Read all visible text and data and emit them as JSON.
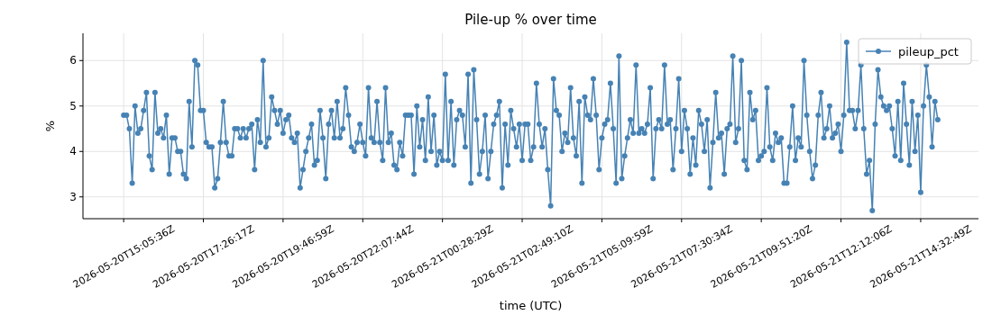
{
  "chart_data": {
    "type": "line",
    "title": "Pile-up % over time",
    "xlabel": "time (UTC)",
    "ylabel": "%",
    "categories": [
      "2026-05-20T15:05:36Z",
      null,
      null,
      null,
      null,
      null,
      null,
      null,
      null,
      null,
      null,
      null,
      null,
      null,
      null,
      null,
      null,
      null,
      null,
      null,
      null,
      null,
      null,
      null,
      null,
      null,
      null,
      null,
      "2026-05-20T17:26:17Z",
      null,
      null,
      null,
      null,
      null,
      null,
      null,
      null,
      null,
      null,
      null,
      null,
      null,
      null,
      null,
      null,
      null,
      null,
      null,
      null,
      null,
      null,
      null,
      null,
      null,
      null,
      null,
      "2026-05-20T19:46:59Z",
      null,
      null,
      null,
      null,
      null,
      null,
      null,
      null,
      null,
      null,
      null,
      null,
      null,
      null,
      null,
      null,
      null,
      null,
      null,
      null,
      null,
      null,
      null,
      null,
      null,
      null,
      null,
      "2026-05-20T22:07:44Z",
      null,
      null,
      null,
      null,
      null,
      null,
      null,
      null,
      null,
      null,
      null,
      null,
      null,
      null,
      null,
      null,
      null,
      null,
      null,
      null,
      null,
      null,
      null,
      null,
      null,
      null,
      null,
      "2026-05-21T00:28:29Z",
      null,
      null,
      null,
      null,
      null,
      null,
      null,
      null,
      null,
      null,
      null,
      null,
      null,
      null,
      null,
      null,
      null,
      null,
      null,
      null,
      null,
      null,
      null,
      null,
      null,
      null,
      null,
      "2026-05-21T02:49:10Z",
      null,
      null,
      null,
      null,
      null,
      null,
      null,
      null,
      null,
      null,
      null,
      null,
      null,
      null,
      null,
      null,
      null,
      null,
      null,
      null,
      null,
      null,
      null,
      null,
      null,
      null,
      null,
      "2026-05-21T05:09:59Z",
      null,
      null,
      null,
      null,
      null,
      null,
      null,
      null,
      null,
      null,
      null,
      null,
      null,
      null,
      null,
      null,
      null,
      null,
      null,
      null,
      null,
      null,
      null,
      null,
      null,
      null,
      null,
      "2026-05-21T07:30:34Z",
      null,
      null,
      null,
      null,
      null,
      null,
      null,
      null,
      null,
      null,
      null,
      null,
      null,
      null,
      null,
      null,
      null,
      null,
      null,
      null,
      null,
      null,
      null,
      null,
      null,
      null,
      null,
      "2026-05-21T09:51:20Z",
      null,
      null,
      null,
      null,
      null,
      null,
      null,
      null,
      null,
      null,
      null,
      null,
      null,
      null,
      null,
      null,
      null,
      null,
      null,
      null,
      null,
      null,
      null,
      null,
      null,
      null,
      null,
      "2026-05-21T12:12:06Z",
      null,
      null,
      null,
      null,
      null,
      null,
      null,
      null,
      null,
      null,
      null,
      null,
      null,
      null,
      null,
      null,
      null,
      null,
      null,
      null,
      null,
      null,
      null,
      null,
      null,
      null,
      null,
      "2026-05-21T14:32:49Z",
      null,
      null,
      null,
      null,
      null,
      null
    ],
    "series": [
      {
        "name": "pileup_pct",
        "color": "#4682b4",
        "values": [
          4.8,
          4.8,
          4.5,
          3.3,
          5.0,
          4.4,
          4.5,
          4.9,
          5.3,
          3.9,
          3.6,
          5.3,
          4.4,
          4.5,
          4.3,
          4.8,
          3.5,
          4.3,
          4.3,
          4.0,
          4.0,
          3.5,
          3.4,
          5.1,
          4.1,
          6.0,
          5.9,
          4.9,
          4.9,
          4.2,
          4.1,
          4.1,
          3.2,
          3.4,
          4.2,
          5.1,
          4.2,
          3.9,
          3.9,
          4.5,
          4.5,
          4.3,
          4.5,
          4.3,
          4.5,
          4.6,
          3.6,
          4.7,
          4.2,
          6.0,
          4.1,
          4.3,
          5.2,
          4.9,
          4.6,
          4.9,
          4.4,
          4.7,
          4.8,
          4.3,
          4.2,
          4.4,
          3.2,
          3.6,
          4.0,
          4.3,
          4.6,
          3.7,
          3.8,
          4.9,
          4.3,
          3.4,
          4.6,
          4.9,
          4.3,
          5.1,
          4.3,
          4.5,
          5.4,
          4.8,
          4.1,
          4.0,
          4.2,
          4.6,
          4.2,
          3.9,
          5.4,
          4.3,
          4.2,
          5.1,
          4.2,
          3.8,
          5.4,
          4.2,
          4.4,
          3.7,
          3.6,
          4.2,
          3.9,
          4.8,
          4.8,
          4.8,
          3.5,
          5.0,
          4.1,
          4.7,
          3.8,
          5.2,
          4.0,
          4.8,
          3.7,
          4.0,
          3.8,
          5.7,
          3.8,
          5.1,
          3.7,
          4.7,
          4.9,
          4.8,
          4.1,
          5.7,
          3.3,
          5.8,
          4.7,
          3.5,
          4.0,
          4.8,
          3.4,
          4.0,
          4.6,
          4.8,
          5.1,
          3.2,
          4.6,
          3.7,
          4.9,
          4.5,
          4.1,
          4.6,
          3.8,
          4.6,
          4.6,
          3.8,
          4.1,
          5.5,
          4.6,
          4.1,
          4.5,
          3.6,
          2.8,
          5.6,
          4.9,
          4.8,
          4.0,
          4.4,
          4.2,
          5.4,
          4.3,
          3.9,
          5.1,
          3.3,
          5.2,
          4.8,
          4.7,
          5.6,
          4.8,
          3.6,
          4.3,
          4.6,
          4.7,
          5.5,
          4.5,
          3.3,
          6.1,
          3.4,
          3.9,
          4.3,
          4.7,
          4.4,
          5.9,
          4.4,
          4.5,
          4.4,
          4.6,
          5.4,
          3.4,
          4.5,
          4.7,
          4.5,
          5.9,
          4.6,
          4.7,
          3.6,
          4.5,
          5.6,
          4.0,
          4.9,
          4.5,
          3.5,
          4.3,
          3.7,
          4.9,
          4.6,
          4.0,
          4.7,
          3.2,
          4.2,
          5.3,
          4.3,
          4.4,
          3.5,
          4.5,
          4.6,
          6.1,
          4.2,
          4.5,
          6.0,
          3.8,
          3.6,
          5.3,
          4.7,
          4.9,
          3.8,
          3.9,
          4.0,
          5.4,
          4.1,
          3.8,
          4.4,
          4.2,
          4.3,
          3.3,
          3.3,
          4.1,
          5.0,
          3.8,
          4.3,
          4.1,
          6.0,
          4.8,
          4.0,
          3.4,
          3.7,
          4.8,
          5.3,
          4.3,
          4.5,
          5.0,
          4.3,
          4.4,
          4.6,
          4.0,
          4.8,
          6.4,
          4.9,
          4.9,
          4.5,
          4.9,
          5.9,
          4.5,
          3.5,
          3.8,
          2.7,
          4.6,
          5.8,
          5.2,
          5.0,
          4.9,
          5.0,
          4.5,
          3.9,
          5.1,
          3.8,
          5.5,
          4.6,
          3.7,
          5.1,
          4.0,
          4.8,
          3.1,
          5.0,
          5.9,
          5.2,
          4.1,
          5.1,
          4.7
        ]
      }
    ],
    "ylim": [
      2.52,
      6.6
    ],
    "yticks": [
      3,
      4,
      5,
      6
    ],
    "grid": true,
    "legend": "top right",
    "marker": "circle",
    "line_style": "solid"
  }
}
